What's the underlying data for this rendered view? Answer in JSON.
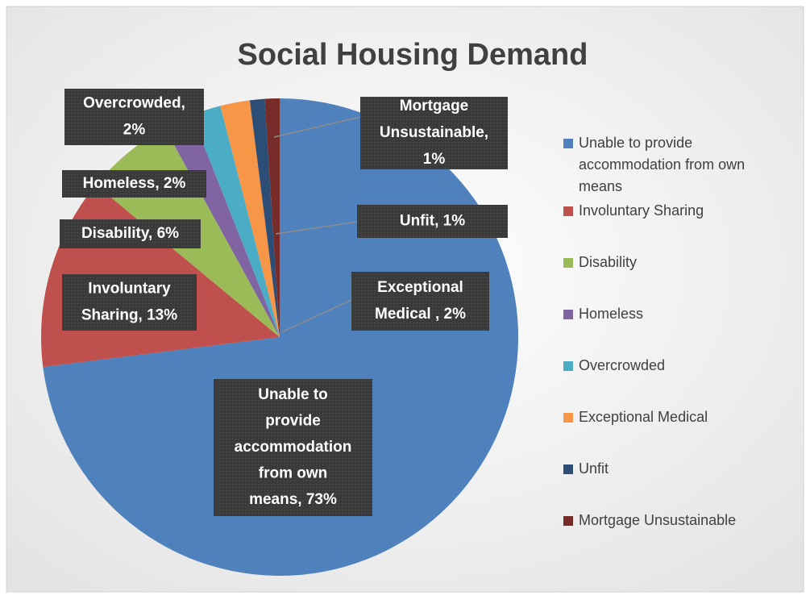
{
  "chart_data": {
    "type": "pie",
    "title": "Social Housing Demand",
    "categories": [
      "Unable to provide accommodation from own means",
      "Involuntary Sharing",
      "Disability",
      "Homeless",
      "Overcrowded",
      "Exceptional Medical",
      "Unfit",
      "Mortgage Unsustainable"
    ],
    "values": [
      73,
      13,
      6,
      2,
      2,
      2,
      1,
      1
    ],
    "value_labels": [
      "Unable to provide accommodation from own means, 73%",
      "Involuntary Sharing, 13%",
      "Disability, 6%",
      "Homeless, 2%",
      "Overcrowded, 2%",
      "Exceptional Medical , 2%",
      "Unfit, 1%",
      "Mortgage Unsustainable, 1%"
    ],
    "colors": [
      "#4f81bd",
      "#c0504d",
      "#9bbb59",
      "#8064a2",
      "#4bacc6",
      "#f79646",
      "#2c4d75",
      "#772c2a"
    ],
    "legend": "right"
  }
}
